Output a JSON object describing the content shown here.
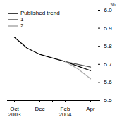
{
  "chart_data": {
    "type": "line",
    "y_label": "%",
    "categories": [
      "Oct\n2003",
      null,
      "Dec",
      null,
      "Feb\n2004",
      null,
      "Apr"
    ],
    "series": [
      {
        "name": "Published trend",
        "color": "#000000",
        "values": [
          5.85,
          5.79,
          5.755,
          5.735,
          5.715,
          5.69,
          5.665
        ]
      },
      {
        "name": "1",
        "color": "#555555",
        "values": [
          null,
          null,
          null,
          null,
          5.715,
          5.7,
          5.685
        ]
      },
      {
        "name": "2",
        "color": "#aaaaaa",
        "values": [
          null,
          null,
          null,
          null,
          5.715,
          5.675,
          5.62
        ]
      }
    ],
    "ylim": [
      5.5,
      6.0
    ],
    "yticks": [
      5.5,
      5.6,
      5.7,
      5.8,
      5.9,
      {
        "value": 6.0,
        "label": "6.0"
      }
    ],
    "grid": false,
    "legend": "top-left"
  }
}
